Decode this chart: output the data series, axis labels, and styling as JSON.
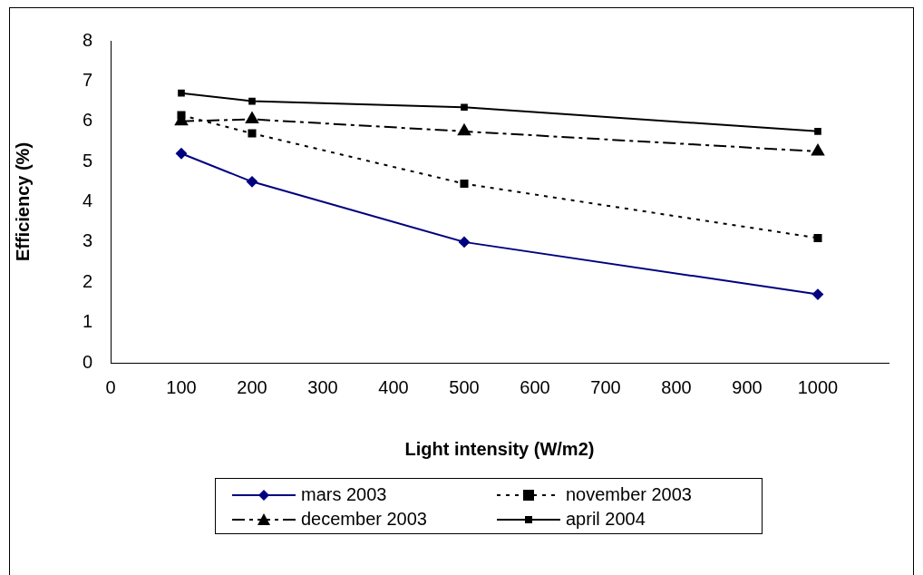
{
  "chart_data": {
    "type": "line",
    "xlabel": "Light intensity (W/m2)",
    "ylabel": "Efficiency (%)",
    "x": [
      100,
      200,
      500,
      1000
    ],
    "series": [
      {
        "name": "mars 2003",
        "color": "#000080",
        "values": [
          5.2,
          4.5,
          3.0,
          1.7
        ],
        "marker": "diamond",
        "line_style": "solid"
      },
      {
        "name": "november 2003",
        "color": "#000000",
        "values": [
          6.15,
          5.7,
          4.45,
          3.1
        ],
        "marker": "square",
        "line_style": "dotted"
      },
      {
        "name": "december 2003",
        "color": "#000000",
        "values": [
          6.0,
          6.05,
          5.75,
          5.25
        ],
        "marker": "triangle",
        "line_style": "dashed"
      },
      {
        "name": "april 2004",
        "color": "#000000",
        "values": [
          6.7,
          6.5,
          6.35,
          5.75
        ],
        "marker": "square",
        "line_style": "solid"
      }
    ],
    "xlim": [
      0,
      1100
    ],
    "xticks": [
      0,
      100,
      200,
      300,
      400,
      500,
      600,
      700,
      800,
      900,
      1000
    ],
    "ylim": [
      0,
      8
    ],
    "yticks": [
      0,
      1,
      2,
      3,
      4,
      5,
      6,
      7,
      8
    ],
    "grid": false,
    "legend": "bottom"
  }
}
